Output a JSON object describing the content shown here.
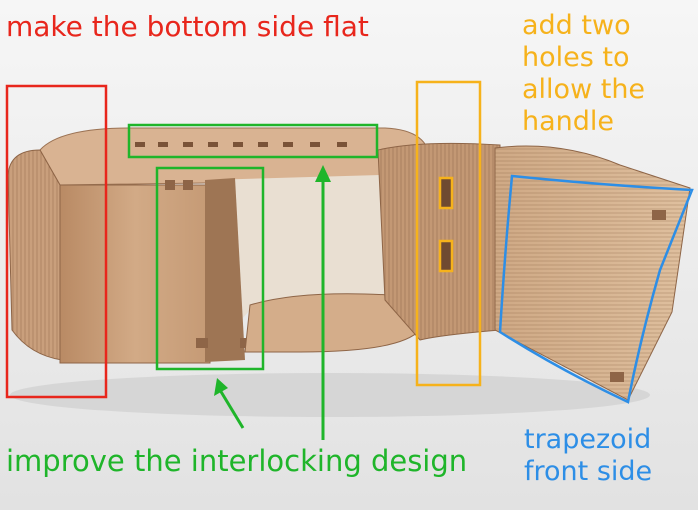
{
  "annotations": {
    "bottom_flat": "make the bottom side flat",
    "two_holes": "add two\nholes to\nallow the\nhandle",
    "interlocking": "improve the interlocking design",
    "trapezoid": "trapezoid\nfront side"
  },
  "colors": {
    "red": "#e8261c",
    "green": "#1fb52a",
    "orange": "#f6b21b",
    "blue": "#2d8ee6",
    "wood_light": "#d7b393",
    "wood_mid": "#c99f7c",
    "wood_dark": "#a97d5b",
    "background": "#efefef"
  }
}
